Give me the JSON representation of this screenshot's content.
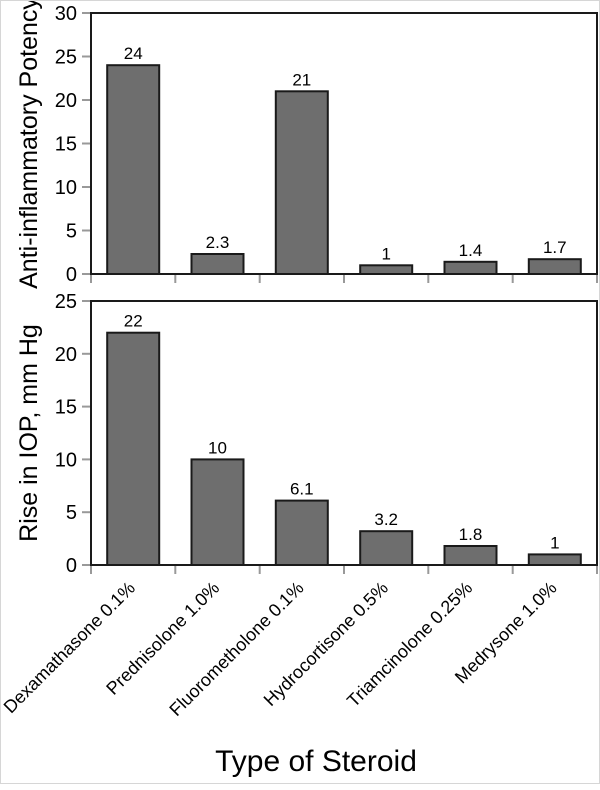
{
  "xlabel": "Type of Steroid",
  "colors": {
    "background": "#ffffff",
    "bar_fill": "#6e6e6e",
    "bar_stroke": "#1a1a1a",
    "frame": "#1a1a1a",
    "tick": "#999999",
    "text": "#000000"
  },
  "chart_data": [
    {
      "type": "bar",
      "panel": "top",
      "ylabel": "Anti-inflammatory Potency",
      "categories": [
        "Dexamathasone 0.1%",
        "Prednisolone 1.0%",
        "Fluorometholone 0.1%",
        "Hydrocortisone 0.5%",
        "Triamcinolone 0.25%",
        "Medrysone 1.0%"
      ],
      "values": [
        24,
        2.3,
        21,
        1,
        1.4,
        1.7
      ],
      "value_labels": [
        "24",
        "2.3",
        "21",
        "1",
        "1.4",
        "1.7"
      ],
      "ylim": [
        0,
        30
      ],
      "ytick_step": 5,
      "ytick_labels": [
        "0",
        "5",
        "10",
        "15",
        "20",
        "25",
        "30"
      ],
      "grid": false,
      "legend": "none",
      "show_category_labels": false
    },
    {
      "type": "bar",
      "panel": "bottom",
      "ylabel": "Rise in IOP, mm Hg",
      "categories": [
        "Dexamathasone 0.1%",
        "Prednisolone 1.0%",
        "Fluorometholone 0.1%",
        "Hydrocortisone 0.5%",
        "Triamcinolone 0.25%",
        "Medrysone 1.0%"
      ],
      "values": [
        22,
        10,
        6.1,
        3.2,
        1.8,
        1
      ],
      "value_labels": [
        "22",
        "10",
        "6.1",
        "3.2",
        "1.8",
        "1"
      ],
      "ylim": [
        0,
        25
      ],
      "ytick_step": 5,
      "ytick_labels": [
        "0",
        "5",
        "10",
        "15",
        "20",
        "25"
      ],
      "grid": false,
      "legend": "none",
      "show_category_labels": true
    }
  ]
}
